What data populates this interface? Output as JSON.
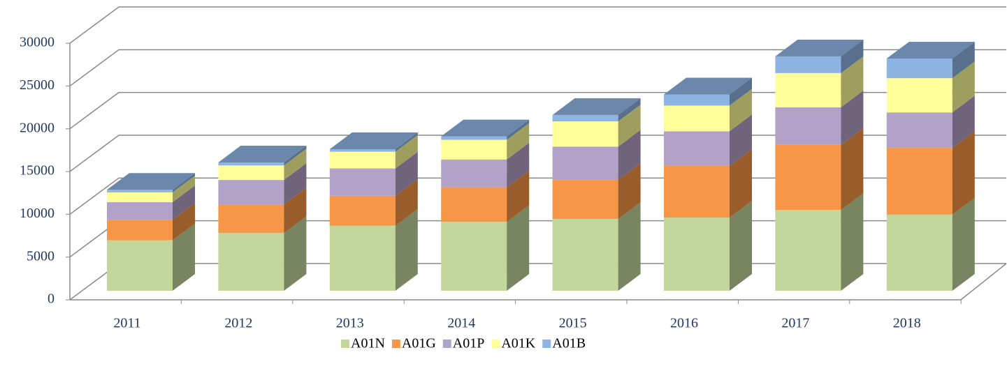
{
  "chart_data": {
    "type": "bar3d_stacked",
    "categories": [
      "2011",
      "2012",
      "2013",
      "2014",
      "2015",
      "2016",
      "2017",
      "2018"
    ],
    "series": [
      {
        "name": "A01N",
        "color": "#c3d69b",
        "values": [
          5900,
          6750,
          7600,
          8050,
          8400,
          8550,
          9450,
          8900
        ]
      },
      {
        "name": "A01G",
        "color": "#f79646",
        "values": [
          2400,
          3350,
          3500,
          4050,
          4550,
          6050,
          7600,
          7800
        ]
      },
      {
        "name": "A01P",
        "color": "#b3a2c7",
        "values": [
          2050,
          2850,
          3200,
          3250,
          3900,
          4050,
          4400,
          4150
        ]
      },
      {
        "name": "A01K",
        "color": "#ffff99",
        "values": [
          1150,
          1700,
          1950,
          2300,
          2950,
          3000,
          4000,
          4000
        ]
      },
      {
        "name": "A01B",
        "color": "#8eb4e3",
        "values": [
          300,
          350,
          300,
          400,
          750,
          1300,
          1950,
          2300
        ]
      }
    ],
    "ylim": [
      0,
      30000
    ],
    "yticks": [
      0,
      5000,
      10000,
      15000,
      20000,
      25000,
      30000
    ],
    "grid": true
  }
}
